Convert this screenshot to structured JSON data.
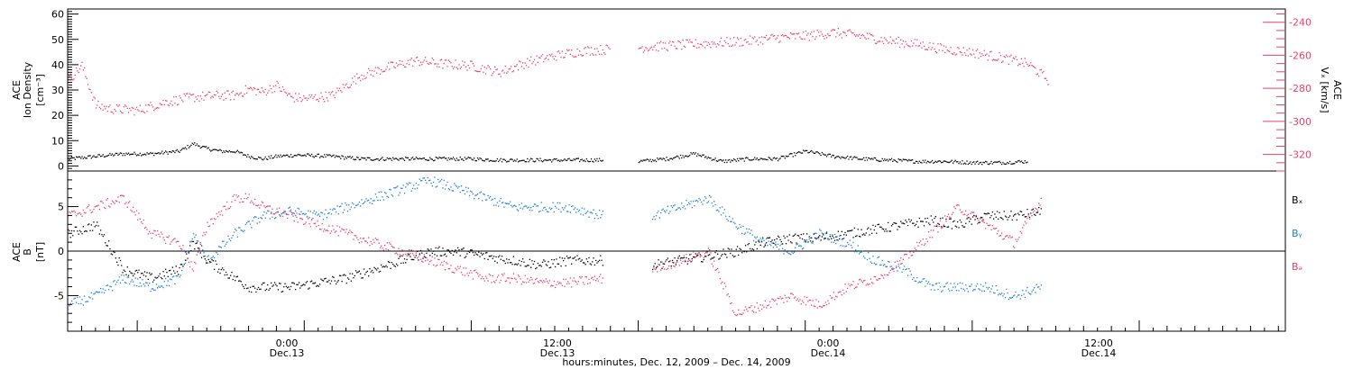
{
  "colors": {
    "black": "#000000",
    "pink": "#e8416e",
    "blue": "#1f7fd8"
  },
  "chart_data": [
    {
      "type": "scatter",
      "panel": "top",
      "ylabel_lines": [
        "ACE",
        "Ion Density",
        "[cm⁻³]"
      ],
      "ylim": [
        -2,
        62
      ],
      "yticks": [
        0,
        10,
        20,
        30,
        40,
        50,
        60
      ],
      "ylabel_right_lines": [
        "ACE",
        "Vₓ [km/s]"
      ],
      "ylim_right": [
        -330,
        -232
      ],
      "yticks_right": [
        -240,
        -260,
        -280,
        -300,
        -320
      ],
      "xlim_hours": [
        -17,
        70.5
      ],
      "series": [
        {
          "color": "black",
          "axis": "left",
          "points": [
            [
              -17,
              3
            ],
            [
              -15,
              4
            ],
            [
              -13,
              5
            ],
            [
              -11,
              5
            ],
            [
              -9,
              6
            ],
            [
              -8,
              9
            ],
            [
              -7,
              7
            ],
            [
              -6,
              6
            ],
            [
              -5,
              6
            ],
            [
              -4,
              4
            ],
            [
              -3,
              3
            ],
            [
              -2,
              4
            ],
            [
              -0.5,
              4.5
            ],
            [
              2,
              4
            ],
            [
              4,
              3
            ],
            [
              6,
              3
            ],
            [
              8,
              3
            ],
            [
              10,
              3
            ],
            [
              12,
              3
            ],
            [
              14,
              2.5
            ],
            [
              16,
              2.5
            ],
            [
              18,
              2.5
            ],
            [
              20,
              2.5
            ],
            [
              21.5,
              2.5
            ],
            [
              22,
              2
            ],
            [
              24,
              2
            ],
            [
              26,
              3
            ],
            [
              28,
              5
            ],
            [
              30,
              2
            ],
            [
              32,
              3
            ],
            [
              34,
              3
            ],
            [
              36,
              6
            ],
            [
              38,
              4
            ],
            [
              40,
              3
            ],
            [
              42,
              2.5
            ],
            [
              44,
              2
            ],
            [
              46,
              2
            ],
            [
              48,
              1.5
            ],
            [
              50,
              1.5
            ],
            [
              52,
              2
            ]
          ]
        },
        {
          "color": "pink",
          "axis": "right",
          "points": [
            [
              -17,
              -275
            ],
            [
              -16,
              -266
            ],
            [
              -15,
              -290
            ],
            [
              -14,
              -292
            ],
            [
              -12,
              -293
            ],
            [
              -10,
              -288
            ],
            [
              -8,
              -285
            ],
            [
              -6,
              -284
            ],
            [
              -5,
              -284
            ],
            [
              -4,
              -280
            ],
            [
              -3,
              -282
            ],
            [
              -2,
              -278
            ],
            [
              -1,
              -285
            ],
            [
              0,
              -286
            ],
            [
              2,
              -284
            ],
            [
              4,
              -272
            ],
            [
              6,
              -267
            ],
            [
              8,
              -263
            ],
            [
              10,
              -265
            ],
            [
              12,
              -266
            ],
            [
              14,
              -270
            ],
            [
              16,
              -264
            ],
            [
              18,
              -260
            ],
            [
              20,
              -257
            ],
            [
              22,
              -256
            ],
            [
              24,
              -255
            ],
            [
              26,
              -254
            ],
            [
              28,
              -253
            ],
            [
              30,
              -252
            ],
            [
              32,
              -251
            ],
            [
              34,
              -249
            ],
            [
              36,
              -248
            ],
            [
              38,
              -246
            ],
            [
              40,
              -248
            ],
            [
              42,
              -251
            ],
            [
              44,
              -253
            ],
            [
              46,
              -256
            ],
            [
              48,
              -258
            ],
            [
              50,
              -261
            ],
            [
              52,
              -265
            ],
            [
              53.5,
              -275
            ]
          ]
        }
      ],
      "x_gaps_hours": [
        [
          21.5,
          25
        ]
      ]
    },
    {
      "type": "scatter",
      "panel": "bottom",
      "ylabel_lines": [
        "ACE",
        "B",
        "[nT]"
      ],
      "ylim": [
        -9,
        9
      ],
      "yticks": [
        -5,
        0,
        5
      ],
      "zero_line": true,
      "legend": [
        "Bₓ",
        "Bᵧ",
        "Bₔ"
      ],
      "series": [
        {
          "color": "black",
          "points": [
            [
              -17,
              2
            ],
            [
              -15,
              3
            ],
            [
              -13,
              -2
            ],
            [
              -11,
              -3
            ],
            [
              -9,
              -2
            ],
            [
              -8,
              1
            ],
            [
              -7,
              -1
            ],
            [
              -5,
              -3
            ],
            [
              -4,
              -4
            ],
            [
              -3,
              -4
            ],
            [
              -1,
              -4
            ],
            [
              1,
              -3.5
            ],
            [
              3,
              -3
            ],
            [
              5,
              -2
            ],
            [
              7,
              -1
            ],
            [
              9,
              0
            ],
            [
              11,
              0
            ],
            [
              13,
              -0.5
            ],
            [
              15,
              -1
            ],
            [
              17,
              -1.5
            ],
            [
              19,
              -1
            ],
            [
              21.5,
              -1
            ],
            [
              25,
              -1.5
            ],
            [
              27,
              -1
            ],
            [
              29,
              -0.5
            ],
            [
              31,
              0
            ],
            [
              33,
              1
            ],
            [
              35,
              1.5
            ],
            [
              37,
              1.5
            ],
            [
              39,
              2
            ],
            [
              41,
              2.5
            ],
            [
              43,
              3
            ],
            [
              45,
              3.5
            ],
            [
              47,
              3
            ],
            [
              49,
              4
            ],
            [
              51,
              4
            ],
            [
              53,
              4.5
            ]
          ]
        },
        {
          "color": "blue",
          "points": [
            [
              -17,
              -6
            ],
            [
              -15,
              -5
            ],
            [
              -13,
              -3
            ],
            [
              -11,
              -4
            ],
            [
              -9,
              -3
            ],
            [
              -8,
              2
            ],
            [
              -7,
              -1
            ],
            [
              -5,
              2
            ],
            [
              -4,
              3
            ],
            [
              -3,
              4
            ],
            [
              -1,
              4.5
            ],
            [
              1,
              4
            ],
            [
              3,
              5
            ],
            [
              5,
              6
            ],
            [
              7,
              7
            ],
            [
              9,
              8
            ],
            [
              11,
              7
            ],
            [
              13,
              6
            ],
            [
              15,
              5
            ],
            [
              17,
              5
            ],
            [
              19,
              5
            ],
            [
              21.5,
              4
            ],
            [
              25,
              4
            ],
            [
              27,
              5
            ],
            [
              29,
              6
            ],
            [
              31,
              3
            ],
            [
              33,
              1
            ],
            [
              35,
              0
            ],
            [
              37,
              2
            ],
            [
              39,
              1
            ],
            [
              41,
              -1
            ],
            [
              43,
              -2
            ],
            [
              45,
              -4
            ],
            [
              47,
              -4
            ],
            [
              49,
              -4
            ],
            [
              51,
              -5
            ],
            [
              53,
              -4
            ]
          ]
        },
        {
          "color": "pink",
          "points": [
            [
              -17,
              4
            ],
            [
              -15,
              5
            ],
            [
              -13,
              6
            ],
            [
              -11,
              2
            ],
            [
              -9,
              1
            ],
            [
              -8,
              -2
            ],
            [
              -7,
              3
            ],
            [
              -5,
              6
            ],
            [
              -4,
              6
            ],
            [
              -3,
              5
            ],
            [
              -1,
              4
            ],
            [
              1,
              3
            ],
            [
              3,
              2
            ],
            [
              5,
              1
            ],
            [
              7,
              0
            ],
            [
              9,
              -1
            ],
            [
              11,
              -2
            ],
            [
              13,
              -3
            ],
            [
              15,
              -3
            ],
            [
              17,
              -3.5
            ],
            [
              19,
              -3.5
            ],
            [
              21.5,
              -3
            ],
            [
              25,
              -2
            ],
            [
              27,
              -1
            ],
            [
              29,
              0
            ],
            [
              31,
              -7
            ],
            [
              33,
              -6
            ],
            [
              35,
              -5
            ],
            [
              37,
              -6
            ],
            [
              39,
              -4
            ],
            [
              41,
              -3
            ],
            [
              43,
              -1
            ],
            [
              45,
              2
            ],
            [
              47,
              5
            ],
            [
              49,
              3
            ],
            [
              51,
              1
            ],
            [
              53,
              6
            ]
          ]
        }
      ]
    }
  ],
  "xaxis": {
    "tick_labels": [
      {
        "hour": 0,
        "time": "0:00",
        "date": "Dec.13"
      },
      {
        "hour": 12,
        "time": "12:00",
        "date": "Dec.13"
      },
      {
        "hour": 24,
        "time": "0:00",
        "date": "Dec.14"
      },
      {
        "hour": 36,
        "time": "12:00",
        "date": "Dec.14"
      }
    ],
    "xlabel": "hours:minutes, Dec. 12, 2009 – Dec. 14, 2009"
  }
}
